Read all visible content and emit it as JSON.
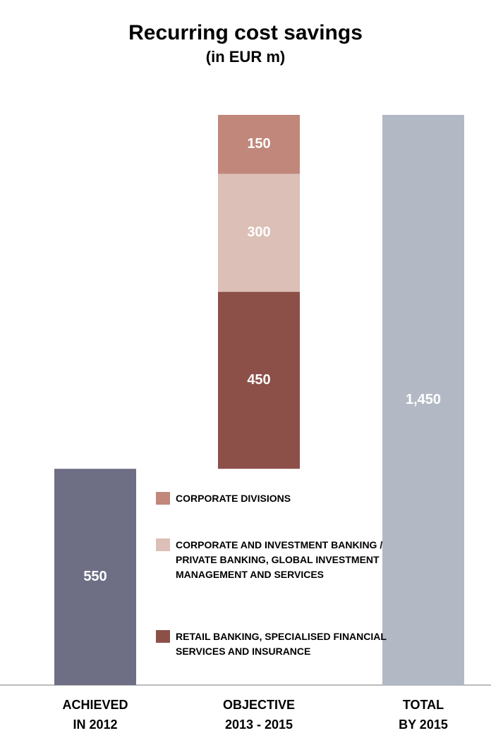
{
  "chart_data": {
    "type": "waterfall",
    "title": "Recurring cost savings",
    "subtitle": "(in EUR m)",
    "categories": [
      [
        "ACHIEVED",
        "IN 2012"
      ],
      [
        "OBJECTIVE",
        "2013 - 2015"
      ],
      [
        "TOTAL",
        "BY 2015"
      ]
    ],
    "start": {
      "value": 550,
      "color": "#6e6e85"
    },
    "segments": [
      {
        "name": "RETAIL BANKING, SPECIALISED FINANCIAL SERVICES AND INSURANCE",
        "color": "#8c5048",
        "value": 450
      },
      {
        "name": "CORPORATE AND INVESTMENT BANKING / PRIVATE BANKING, GLOBAL INVESTMENT MANAGEMENT AND SERVICES",
        "color": "#dcbfb6",
        "value": 300
      },
      {
        "name": "CORPORATE DIVISIONS",
        "color": "#c0877a",
        "value": 150
      }
    ],
    "total": {
      "value": 1450,
      "value_label": "1,450",
      "color": "#b3b9c4"
    },
    "ylim": [
      0,
      1450
    ]
  }
}
